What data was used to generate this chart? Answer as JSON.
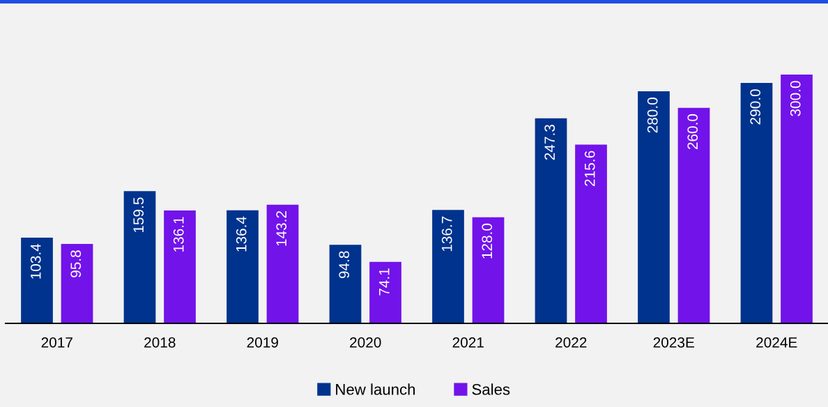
{
  "chart_data": {
    "type": "bar",
    "categories": [
      "2017",
      "2018",
      "2019",
      "2020",
      "2021",
      "2022",
      "2023E",
      "2024E"
    ],
    "series": [
      {
        "name": "New launch",
        "color": "#00338d",
        "values": [
          103.4,
          159.5,
          136.4,
          94.8,
          136.7,
          247.3,
          280.0,
          290.0
        ],
        "value_labels": [
          "103.4",
          "159.5",
          "136.4",
          "94.8",
          "136.7",
          "247.3",
          "280.0",
          "290.0"
        ]
      },
      {
        "name": "Sales",
        "color": "#7213ea",
        "values": [
          95.8,
          136.1,
          143.2,
          74.1,
          128.0,
          215.6,
          260.0,
          300.0
        ],
        "value_labels": [
          "95.8",
          "136.1",
          "143.2",
          "74.1",
          "128.0",
          "215.6",
          "260.0",
          "300.0"
        ]
      }
    ],
    "legend": "bottom",
    "grid": false,
    "tick_labels": "x"
  }
}
